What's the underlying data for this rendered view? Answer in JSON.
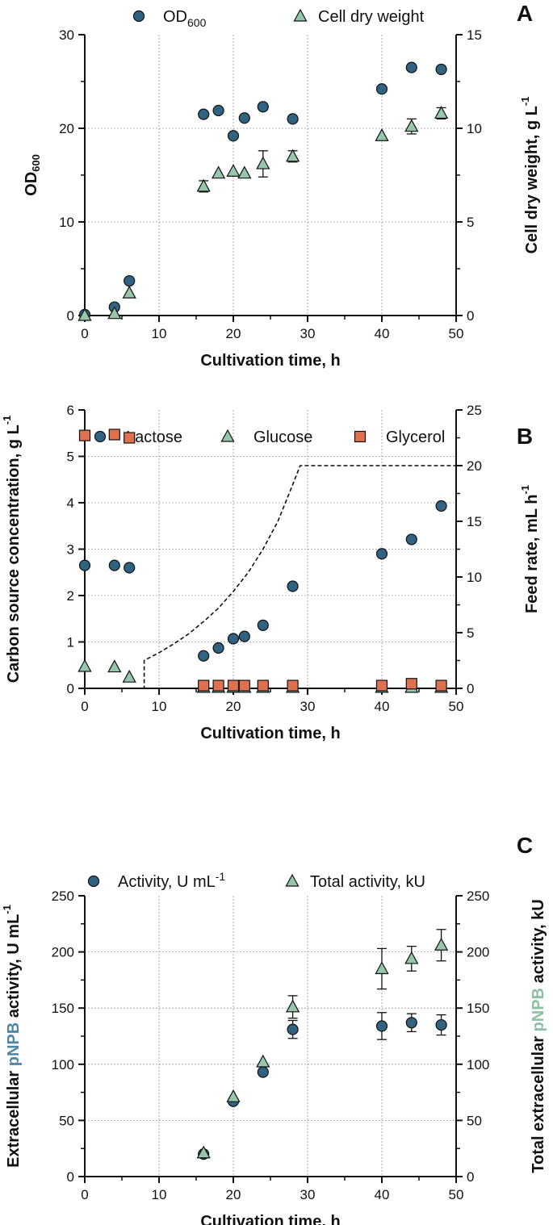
{
  "colors": {
    "blue": "#2f6381",
    "green": "#96c7aa",
    "orange": "#e0714f",
    "axis": "#111111",
    "grid": "#9a9a9a",
    "pnpb_blue": "#4f86a6",
    "pnpb_green": "#8dbfa6"
  },
  "chart_data": [
    {
      "panel": "A",
      "type": "scatter",
      "legend": [
        "OD",
        "600",
        "Cell dry weight"
      ],
      "xlabel": "Cultivation time, h",
      "ylabel": {
        "base": "OD",
        "sub": "600"
      },
      "y2label": {
        "base": "Cell dry weight, g L",
        "sup": "-1"
      },
      "xlim": [
        0,
        50
      ],
      "xticks": [
        "0",
        "10",
        "20",
        "30",
        "40",
        "50"
      ],
      "ylim": [
        0,
        30
      ],
      "yticks": [
        "0",
        "10",
        "20",
        "30"
      ],
      "y2lim": [
        0,
        15
      ],
      "y2ticks": [
        "0",
        "5",
        "10",
        "15"
      ],
      "series": [
        {
          "name": "OD600",
          "axis": "left",
          "marker": "circle",
          "color": "blue",
          "x": [
            0,
            4,
            6,
            16,
            18,
            20,
            21.5,
            24,
            28,
            40,
            44,
            48
          ],
          "y": [
            0.1,
            0.9,
            3.7,
            21.5,
            21.9,
            19.2,
            21.1,
            22.3,
            21.0,
            24.2,
            26.5,
            26.3
          ]
        },
        {
          "name": "Cell dry weight",
          "axis": "right",
          "marker": "triangle",
          "color": "green",
          "x": [
            0,
            4,
            6,
            16,
            18,
            20,
            21.5,
            24,
            28,
            40,
            44,
            48
          ],
          "y": [
            0.0,
            0.1,
            1.2,
            6.9,
            7.6,
            7.7,
            7.6,
            8.1,
            8.5,
            9.6,
            10.1,
            10.8
          ],
          "err": [
            0,
            0,
            0,
            0.3,
            0,
            0,
            0,
            0.7,
            0.3,
            0,
            0.4,
            0.3
          ]
        }
      ]
    },
    {
      "panel": "B",
      "type": "scatter",
      "legend": [
        "Lactose",
        "Glucose",
        "Glycerol"
      ],
      "xlabel": "Cultivation time, h",
      "ylabel": {
        "base": "Carbon source concentration, g L",
        "sup": "-1"
      },
      "y2label": {
        "base": "Feed rate, mL h",
        "sup": "-1"
      },
      "xlim": [
        0,
        50
      ],
      "xticks": [
        "0",
        "10",
        "20",
        "30",
        "40",
        "50"
      ],
      "ylim": [
        0,
        6
      ],
      "yticks": [
        "0",
        "1",
        "2",
        "3",
        "4",
        "5",
        "6"
      ],
      "y2lim": [
        0,
        25
      ],
      "y2ticks": [
        "0",
        "5",
        "10",
        "15",
        "20",
        "25"
      ],
      "series": [
        {
          "name": "Lactose",
          "axis": "left",
          "marker": "circle",
          "color": "blue",
          "x": [
            0,
            4,
            6,
            16,
            18,
            20,
            21.5,
            24,
            28,
            40,
            44,
            48
          ],
          "y": [
            2.65,
            2.65,
            2.6,
            0.7,
            0.87,
            1.07,
            1.12,
            1.36,
            2.2,
            2.9,
            3.21,
            3.93
          ]
        },
        {
          "name": "Glucose",
          "axis": "left",
          "marker": "triangle",
          "color": "green",
          "x": [
            0,
            4,
            6,
            16,
            18,
            20,
            21.5,
            24,
            28,
            40,
            44,
            48
          ],
          "y": [
            0.47,
            0.46,
            0.24,
            0.02,
            0.02,
            0.02,
            0.02,
            0.02,
            0.02,
            0.02,
            0.02,
            0.02
          ]
        },
        {
          "name": "Glycerol",
          "axis": "left",
          "marker": "square",
          "color": "orange",
          "x": [
            0,
            4,
            6,
            16,
            18,
            20,
            21.5,
            24,
            28,
            40,
            44,
            48
          ],
          "y": [
            5.45,
            5.47,
            5.4,
            0.06,
            0.06,
            0.06,
            0.06,
            0.06,
            0.06,
            0.06,
            0.1,
            0.06
          ]
        },
        {
          "name": "Feed rate",
          "axis": "right",
          "marker": "dashed-line",
          "color": "axis",
          "x": [
            0,
            8,
            8,
            10,
            12,
            14,
            16,
            18,
            20,
            22,
            24,
            26,
            28,
            29,
            50
          ],
          "y": [
            0,
            0,
            2.5,
            3.2,
            4.0,
            4.9,
            6.0,
            7.2,
            8.7,
            10.4,
            12.5,
            15.0,
            18.3,
            20.0,
            20.0
          ]
        }
      ]
    },
    {
      "panel": "C",
      "type": "scatter",
      "legend": [
        "Activity, U mL",
        "-1",
        "Total activity, kU"
      ],
      "xlabel": "Cultivation time, h",
      "ylabel": {
        "pre": "Extracellular ",
        "hl": "pNPB",
        "post": " activity, U mL",
        "sup": "-1"
      },
      "y2label": {
        "pre": "Total extracellular ",
        "hl": "pNPB",
        "post": " activity, kU"
      },
      "xlim": [
        0,
        50
      ],
      "xticks": [
        "0",
        "10",
        "20",
        "30",
        "40",
        "50"
      ],
      "ylim": [
        0,
        250
      ],
      "yticks": [
        "0",
        "50",
        "100",
        "150",
        "200",
        "250"
      ],
      "y2lim": [
        0,
        250
      ],
      "y2ticks": [
        "0",
        "50",
        "100",
        "150",
        "200",
        "250"
      ],
      "series": [
        {
          "name": "Activity",
          "axis": "left",
          "marker": "circle",
          "color": "blue",
          "x": [
            16,
            20,
            24,
            28,
            40,
            44,
            48
          ],
          "y": [
            20,
            67,
            93,
            131,
            134,
            137,
            135
          ],
          "err": [
            0,
            0,
            0,
            8,
            12,
            8,
            9
          ]
        },
        {
          "name": "Total activity",
          "axis": "right",
          "marker": "triangle",
          "color": "green",
          "x": [
            16,
            20,
            24,
            28,
            40,
            44,
            48
          ],
          "y": [
            21,
            71,
            102,
            151,
            185,
            194,
            206
          ],
          "err": [
            0,
            0,
            0,
            10,
            18,
            11,
            14
          ]
        }
      ]
    }
  ]
}
